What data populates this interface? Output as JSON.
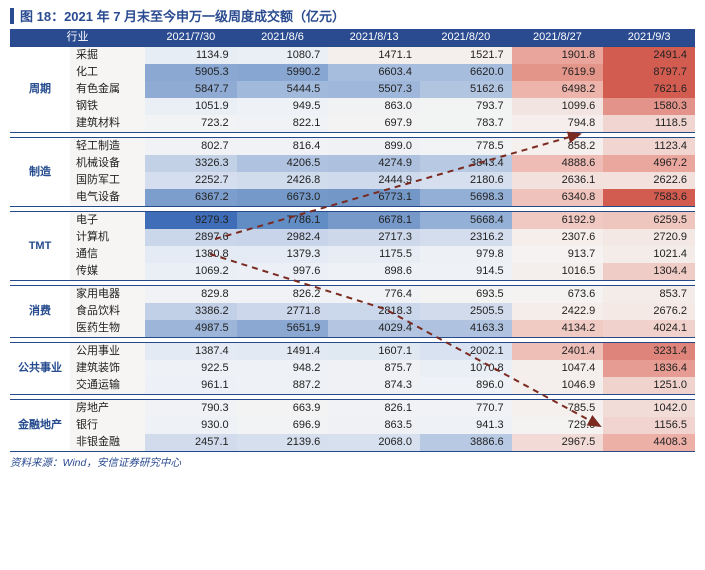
{
  "title": {
    "text": "图 18：2021 年 7 月末至今申万一级周度成交额（亿元）",
    "color": "#2a4b90",
    "bar_color": "#2a4b90",
    "fontsize": 13
  },
  "source": {
    "text": "资料来源：Wind，安信证券研究中心",
    "color": "#2a4b90"
  },
  "header": {
    "cols": [
      "行业",
      "2021/7/30",
      "2021/8/6",
      "2021/8/13",
      "2021/8/20",
      "2021/8/27",
      "2021/9/3"
    ],
    "bg": "#2a4b90",
    "fg": "#ffffff"
  },
  "heatmap": {
    "low_color": "#3f6db8",
    "mid_color": "#f5f3f2",
    "high_color": "#e07a6f",
    "group_label_color": "#264c8f",
    "ind_text_color": "#222222",
    "val_text_color": "#222222",
    "border_color": "#254a8a"
  },
  "groups": [
    {
      "name": "周期",
      "rows": [
        {
          "ind": "采掘",
          "vals": [
            1134.9,
            1080.7,
            1471.1,
            1521.7,
            1901.8,
            2491.4
          ],
          "bg": [
            "#e7edf5",
            "#eaeff6",
            "#f4efed",
            "#f4efed",
            "#e9a59b",
            "#d35c51"
          ]
        },
        {
          "ind": "化工",
          "vals": [
            5905.3,
            5990.2,
            6603.4,
            6620.0,
            7619.9,
            8797.7
          ],
          "bg": [
            "#8aa8d2",
            "#87a6d1",
            "#a6bdde",
            "#a6bdde",
            "#e4958a",
            "#d35c51"
          ]
        },
        {
          "ind": "有色金属",
          "vals": [
            5847.7,
            5444.5,
            5507.3,
            5162.6,
            6498.2,
            7621.6
          ],
          "bg": [
            "#8fabd4",
            "#a1b9db",
            "#9fb7da",
            "#b1c4e0",
            "#ecb4ab",
            "#d35c51"
          ]
        },
        {
          "ind": "钢铁",
          "vals": [
            1051.9,
            949.5,
            863.0,
            793.7,
            1099.6,
            1580.3
          ],
          "bg": [
            "#eaeff6",
            "#eef1f6",
            "#f1f2f4",
            "#f2f3f3",
            "#f2e4e0",
            "#e4938a"
          ]
        },
        {
          "ind": "建筑材料",
          "vals": [
            723.2,
            822.1,
            697.9,
            783.7,
            794.8,
            1118.5
          ],
          "bg": [
            "#f2f3f4",
            "#f0f2f5",
            "#f3f3f3",
            "#f2f3f3",
            "#f5eeec",
            "#f0d5d0"
          ]
        }
      ]
    },
    {
      "name": "制造",
      "rows": [
        {
          "ind": "轻工制造",
          "vals": [
            802.7,
            816.4,
            899.0,
            778.5,
            858.2,
            1123.4
          ],
          "bg": [
            "#f1f2f5",
            "#f0f2f5",
            "#eff1f5",
            "#f2f3f4",
            "#f5efed",
            "#f0d5d0"
          ]
        },
        {
          "ind": "机械设备",
          "vals": [
            3326.3,
            4206.5,
            4274.9,
            3843.4,
            4888.6,
            4967.2
          ],
          "bg": [
            "#c3d1e7",
            "#afc3e0",
            "#adc1df",
            "#b8cae3",
            "#eebcb4",
            "#e9a79d"
          ]
        },
        {
          "ind": "国防军工",
          "vals": [
            2252.7,
            2426.8,
            2444.9,
            2180.6,
            2636.1,
            2622.6
          ],
          "bg": [
            "#d4deee",
            "#d0dbec",
            "#cfdaec",
            "#d6dfee",
            "#f3e1dd",
            "#f3e1dd"
          ]
        },
        {
          "ind": "电气设备",
          "vals": [
            6367.2,
            6673.0,
            6773.1,
            5698.3,
            6340.8,
            7583.6
          ],
          "bg": [
            "#7c9ecd",
            "#759ac9",
            "#7398c8",
            "#94afd6",
            "#efc2bb",
            "#d35c51"
          ]
        }
      ]
    },
    {
      "name": "TMT",
      "rows": [
        {
          "ind": "电子",
          "vals": [
            9279.3,
            7786.1,
            6678.1,
            5668.4,
            6192.9,
            6259.5
          ],
          "bg": [
            "#3f6db8",
            "#628dc4",
            "#7699c9",
            "#95b0d6",
            "#f0cac2",
            "#efc6be"
          ]
        },
        {
          "ind": "计算机",
          "vals": [
            2897.6,
            2982.4,
            2717.3,
            2316.2,
            2307.6,
            2720.9
          ],
          "bg": [
            "#cad6ea",
            "#c8d4e9",
            "#cdd8eb",
            "#d4ddee",
            "#f5eeeb",
            "#f4e8e4"
          ]
        },
        {
          "ind": "通信",
          "vals": [
            1380.8,
            1379.3,
            1175.5,
            979.8,
            913.7,
            1021.4
          ],
          "bg": [
            "#e4ebf4",
            "#e4ebf4",
            "#e8edf5",
            "#edf0f5",
            "#f5f2f1",
            "#f3ece9"
          ]
        },
        {
          "ind": "传媒",
          "vals": [
            1069.2,
            997.6,
            898.6,
            914.5,
            1016.5,
            1304.4
          ],
          "bg": [
            "#eaeff6",
            "#ecf0f6",
            "#eef1f6",
            "#eef1f6",
            "#f4eeec",
            "#efccc5"
          ]
        }
      ]
    },
    {
      "name": "消费",
      "rows": [
        {
          "ind": "家用电器",
          "vals": [
            829.8,
            826.2,
            776.4,
            693.5,
            673.6,
            853.7
          ],
          "bg": [
            "#f0f2f5",
            "#f0f2f5",
            "#f1f2f5",
            "#f3f3f4",
            "#f5f3f2",
            "#f4ece9"
          ]
        },
        {
          "ind": "食品饮料",
          "vals": [
            3386.2,
            2771.8,
            2818.3,
            2505.5,
            2422.9,
            2676.2
          ],
          "bg": [
            "#c2d0e7",
            "#ccd7eb",
            "#cbd7ea",
            "#d1dbec",
            "#f5edea",
            "#f4e9e5"
          ]
        },
        {
          "ind": "医药生物",
          "vals": [
            4987.5,
            5651.9,
            4029.4,
            4163.3,
            4134.2,
            4024.1
          ],
          "bg": [
            "#9cb5d8",
            "#8aa8d2",
            "#b3c5e1",
            "#afc3e0",
            "#f0cbc4",
            "#f1d1cb"
          ]
        }
      ]
    },
    {
      "name": "公共事业",
      "rows": [
        {
          "ind": "公用事业",
          "vals": [
            1387.4,
            1491.4,
            1607.1,
            2002.1,
            2401.4,
            3231.4
          ],
          "bg": [
            "#e4eaf4",
            "#e2e9f3",
            "#e0e8f2",
            "#d9e2f0",
            "#eebfb7",
            "#de847a"
          ]
        },
        {
          "ind": "建筑装饰",
          "vals": [
            922.5,
            948.2,
            875.7,
            1070.8,
            1047.4,
            1836.4
          ],
          "bg": [
            "#eef1f6",
            "#eef1f6",
            "#eff1f5",
            "#eaeff6",
            "#f4eeec",
            "#e69c92"
          ]
        },
        {
          "ind": "交通运输",
          "vals": [
            961.1,
            887.2,
            874.3,
            896.0,
            1046.9,
            1251.0
          ],
          "bg": [
            "#edf0f6",
            "#eef1f6",
            "#eff1f5",
            "#eef1f6",
            "#f4eeec",
            "#f1d3ce"
          ]
        }
      ]
    },
    {
      "name": "金融地产",
      "rows": [
        {
          "ind": "房地产",
          "vals": [
            790.3,
            663.9,
            826.1,
            770.7,
            785.5,
            1042.0
          ],
          "bg": [
            "#f1f2f5",
            "#f3f3f4",
            "#f0f2f5",
            "#f1f2f5",
            "#f5f0ee",
            "#f2dcd8"
          ]
        },
        {
          "ind": "银行",
          "vals": [
            930.0,
            696.9,
            863.5,
            941.3,
            729.0,
            1156.5
          ],
          "bg": [
            "#eef1f6",
            "#f2f3f4",
            "#eff1f5",
            "#eef1f6",
            "#f5f3f2",
            "#f1d4cf"
          ]
        },
        {
          "ind": "非银金融",
          "vals": [
            2457.1,
            2139.6,
            2068.0,
            3886.6,
            2967.5,
            4408.3
          ],
          "bg": [
            "#d1dbec",
            "#d6dfee",
            "#d7e0ef",
            "#b8c9e3",
            "#f2dbd6",
            "#ecb0a7"
          ]
        }
      ]
    }
  ],
  "arrows": {
    "stroke": "#7a2a20",
    "stroke_width": 2,
    "dash": "6,5",
    "paths": [
      "M 205 210 L 570 105",
      "M 200 225 L 375 280 L 590 397"
    ]
  }
}
